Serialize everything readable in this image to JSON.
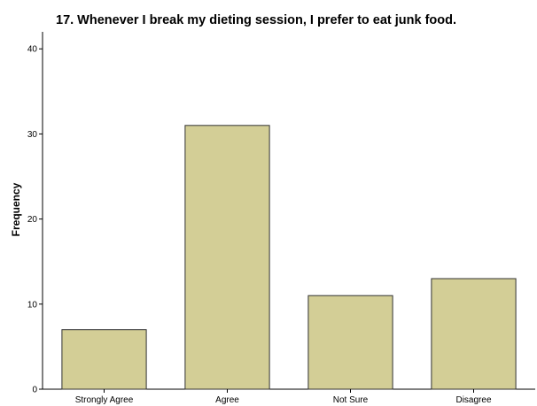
{
  "chart_data": {
    "type": "bar",
    "title": "17. Whenever I break my dieting session, I prefer to eat junk food.",
    "xlabel": "",
    "ylabel": "Frequency",
    "categories": [
      "Strongly Agree",
      "Agree",
      "Not Sure",
      "Disagree"
    ],
    "values": [
      7,
      31,
      11,
      13
    ],
    "ylim": [
      0,
      42
    ],
    "yticks": [
      0,
      10,
      20,
      30,
      40
    ],
    "grid": false,
    "legend": "none",
    "bar_color": "#d3ce96",
    "bar_edge_color": "#333333"
  }
}
